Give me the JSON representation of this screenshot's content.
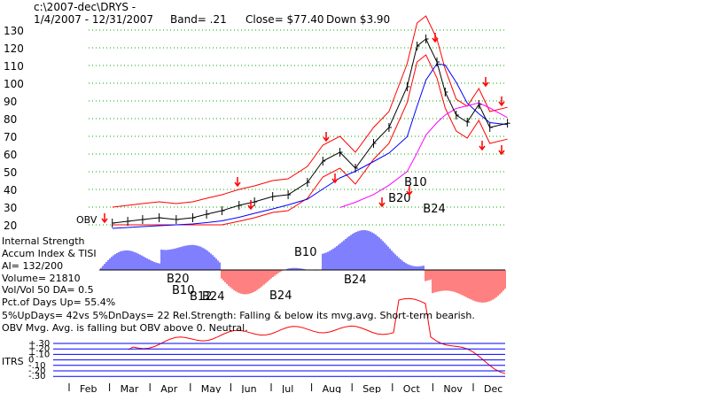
{
  "header": {
    "path": "c:\\2007-dec\\DRYS  -",
    "range": "1/4/2007 - 12/31/2007",
    "band": "Band= .21",
    "close": "Close= $77.40",
    "change": "Down $3.90"
  },
  "info_lines": [
    "Internal Strength",
    "Accum Index & TISI",
    "AI= 132/200",
    "Volume= 21810",
    "Vol/Vol 50 DA= 0.5",
    "Pct.of Days Up= 55.4%",
    "5%UpDays= 42vs 5%DnDays= 22   Rel.Strength: Falling & below its mvg.avg. Short-term bearish.",
    "OBV Mvg. Avg. is falling but OBV above 0. Neutral."
  ],
  "obv_label": "OBV",
  "itrs_label": "ITRS",
  "itrs_ticks": [
    "+.30",
    "+.20",
    "+.10",
    "0",
    "-.10",
    "-.20",
    "-.30"
  ],
  "signals": {
    "price": [
      {
        "label": "B20",
        "x": "Sep 24",
        "y": 33
      },
      {
        "label": "B10",
        "x": "Oct 8",
        "y": 42
      },
      {
        "label": "B24",
        "x": "Oct 25",
        "y": 27
      }
    ],
    "accum": [
      {
        "label": "B20",
        "x": "Apr 2"
      },
      {
        "label": "B10",
        "x": "Apr 5"
      },
      {
        "label": "B12",
        "x": "Apr 20"
      },
      {
        "label": "B24",
        "x": "Apr 22"
      },
      {
        "label": "B10",
        "x": "Jul 21"
      },
      {
        "label": "B24",
        "x": "Sep 1"
      },
      {
        "label": "B24",
        "x": "Jun 25"
      }
    ]
  },
  "colors": {
    "price_bars": "#000000",
    "bands": "#ff0000",
    "ma_short": "#0000ff",
    "ma_long": "#ff00ff",
    "accum_pos": "#0000ff",
    "accum_neg": "#ff0000",
    "grid": "#00aa00",
    "rs": "#ff0000",
    "itrs_lines": "#0000ff"
  },
  "chart_data": {
    "type": "line",
    "title": "1/4/2007 - 12/31/2007",
    "xlabel": "",
    "ylabel": "",
    "ylim": [
      20,
      130
    ],
    "y_ticks": [
      130,
      120,
      110,
      100,
      90,
      80,
      70,
      60,
      50,
      40,
      30,
      20
    ],
    "x_ticks": [
      "Feb",
      "Mar",
      "Apr",
      "May",
      "Jun",
      "Jul",
      "Aug",
      "Sep",
      "Oct",
      "Nov",
      "Dec"
    ],
    "grid": true,
    "series": [
      {
        "name": "",
        "values": [
          {
            "x": "Jan 8",
            "y": 21
          },
          {
            "x": "Jan 22",
            "y": 22
          },
          {
            "x": "Feb 5",
            "y": 23
          },
          {
            "x": "Feb 20",
            "y": 24
          },
          {
            "x": "Mar 5",
            "y": 23
          },
          {
            "x": "Mar 20",
            "y": 24
          },
          {
            "x": "Apr 2",
            "y": 26
          },
          {
            "x": "Apr 16",
            "y": 28
          },
          {
            "x": "May 1",
            "y": 31
          },
          {
            "x": "May 15",
            "y": 33
          },
          {
            "x": "Jun 1",
            "y": 36
          },
          {
            "x": "Jun 15",
            "y": 37
          },
          {
            "x": "Jul 2",
            "y": 44
          },
          {
            "x": "Jul 16",
            "y": 56
          },
          {
            "x": "Aug 1",
            "y": 61
          },
          {
            "x": "Aug 15",
            "y": 52
          },
          {
            "x": "Sep 1",
            "y": 66
          },
          {
            "x": "Sep 15",
            "y": 75
          },
          {
            "x": "Oct 1",
            "y": 98
          },
          {
            "x": "Oct 10",
            "y": 121
          },
          {
            "x": "Oct 18",
            "y": 125
          },
          {
            "x": "Oct 28",
            "y": 112
          },
          {
            "x": "Nov 5",
            "y": 95
          },
          {
            "x": "Nov 15",
            "y": 82
          },
          {
            "x": "Nov 25",
            "y": 78
          },
          {
            "x": "Dec 5",
            "y": 88
          },
          {
            "x": "Dec 15",
            "y": 75
          },
          {
            "x": "Dec 31",
            "y": 77.4
          }
        ]
      }
    ]
  }
}
